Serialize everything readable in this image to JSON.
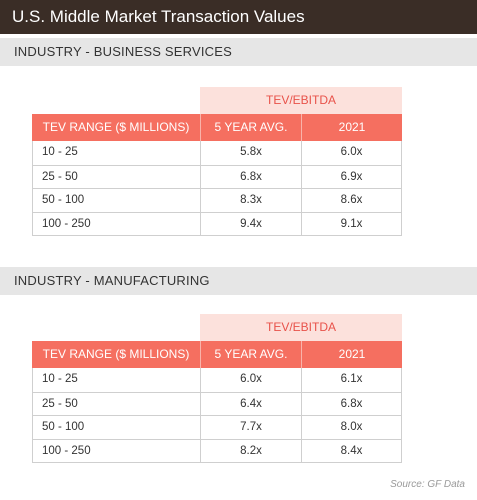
{
  "title": "U.S. Middle Market Transaction Values",
  "source": "Source: GF Data",
  "colors": {
    "title_bg": "#3a2d26",
    "header_bg": "#f56f60",
    "group_bg": "#fce1dc",
    "group_text": "#e8524a",
    "section_bg": "#e6e6e6"
  },
  "chart_data": [
    {
      "type": "table",
      "section": "INDUSTRY - BUSINESS SERVICES",
      "group_header": "TEV/EBITDA",
      "columns": [
        "TEV RANGE ($ MILLIONS)",
        "5 YEAR AVG.",
        "2021"
      ],
      "rows": [
        [
          "10 - 25",
          "5.8x",
          "6.0x"
        ],
        [
          "25 - 50",
          "6.8x",
          "6.9x"
        ],
        [
          "50 - 100",
          "8.3x",
          "8.6x"
        ],
        [
          "100 - 250",
          "9.4x",
          "9.1x"
        ]
      ]
    },
    {
      "type": "table",
      "section": "INDUSTRY - MANUFACTURING",
      "group_header": "TEV/EBITDA",
      "columns": [
        "TEV RANGE ($ MILLIONS)",
        "5 YEAR AVG.",
        "2021"
      ],
      "rows": [
        [
          "10 - 25",
          "6.0x",
          "6.1x"
        ],
        [
          "25 - 50",
          "6.4x",
          "6.8x"
        ],
        [
          "50 - 100",
          "7.7x",
          "8.0x"
        ],
        [
          "100 - 250",
          "8.2x",
          "8.4x"
        ]
      ]
    }
  ]
}
